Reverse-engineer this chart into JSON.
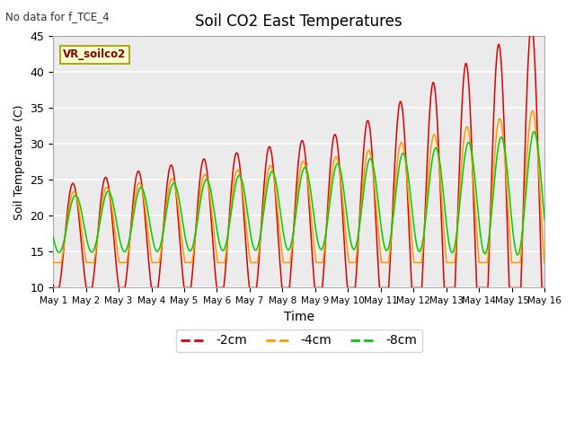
{
  "title": "Soil CO2 East Temperatures",
  "top_left_text": "No data for f_TCE_4",
  "xlabel": "Time",
  "ylabel": "Soil Temperature (C)",
  "ylim": [
    10,
    45
  ],
  "xlim_days": [
    0,
    15
  ],
  "background_color": "#ffffff",
  "plot_bg_color": "#ebebeb",
  "grid_color": "#ffffff",
  "series": {
    "2cm": {
      "color": "#dd0000",
      "label": "-2cm"
    },
    "4cm": {
      "color": "#ff9900",
      "label": "-4cm"
    },
    "8cm": {
      "color": "#00cc00",
      "label": "-8cm"
    }
  },
  "legend_box_color": "#ffffcc",
  "legend_box_edge": "#999900",
  "legend_box_text": "VR_soilco2",
  "x_tick_labels": [
    "May 1",
    "May 2",
    "May 3",
    "May 4",
    "May 5",
    "May 6",
    "May 7",
    "May 8",
    "May 9",
    "May 10",
    "May 11",
    "May 12",
    "May 13",
    "May 14",
    "May 15",
    "May 16"
  ],
  "x_tick_positions": [
    0,
    1,
    2,
    3,
    4,
    5,
    6,
    7,
    8,
    9,
    10,
    11,
    12,
    13,
    14,
    15
  ],
  "yticks": [
    10,
    15,
    20,
    25,
    30,
    35,
    40,
    45
  ]
}
